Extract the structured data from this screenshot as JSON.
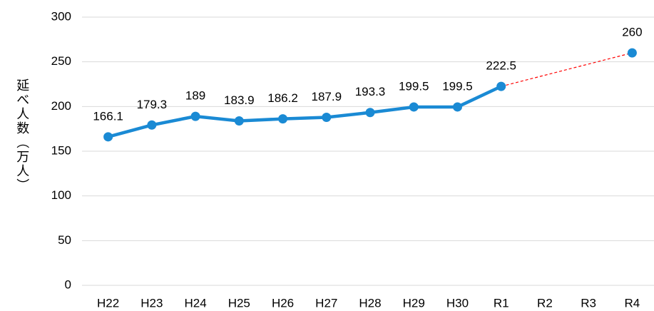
{
  "chart_data": {
    "type": "line",
    "y_axis_label": "延べ人数（万人）",
    "categories": [
      "H22",
      "H23",
      "H24",
      "H25",
      "H26",
      "H27",
      "H28",
      "H29",
      "H30",
      "R1",
      "R2",
      "R3",
      "R4"
    ],
    "series": [
      {
        "color": "#1a8ad4",
        "values": [
          166.1,
          179.3,
          189,
          183.9,
          186.2,
          187.9,
          193.3,
          199.5,
          199.5,
          222.5,
          null,
          null,
          260
        ]
      }
    ],
    "gap_line_color": "#ff0000",
    "gap_line_dashed": true,
    "ylim": [
      0,
      300
    ],
    "yticks": [
      0,
      50,
      100,
      150,
      200,
      250,
      300
    ],
    "grid": true,
    "data_labels": true
  }
}
